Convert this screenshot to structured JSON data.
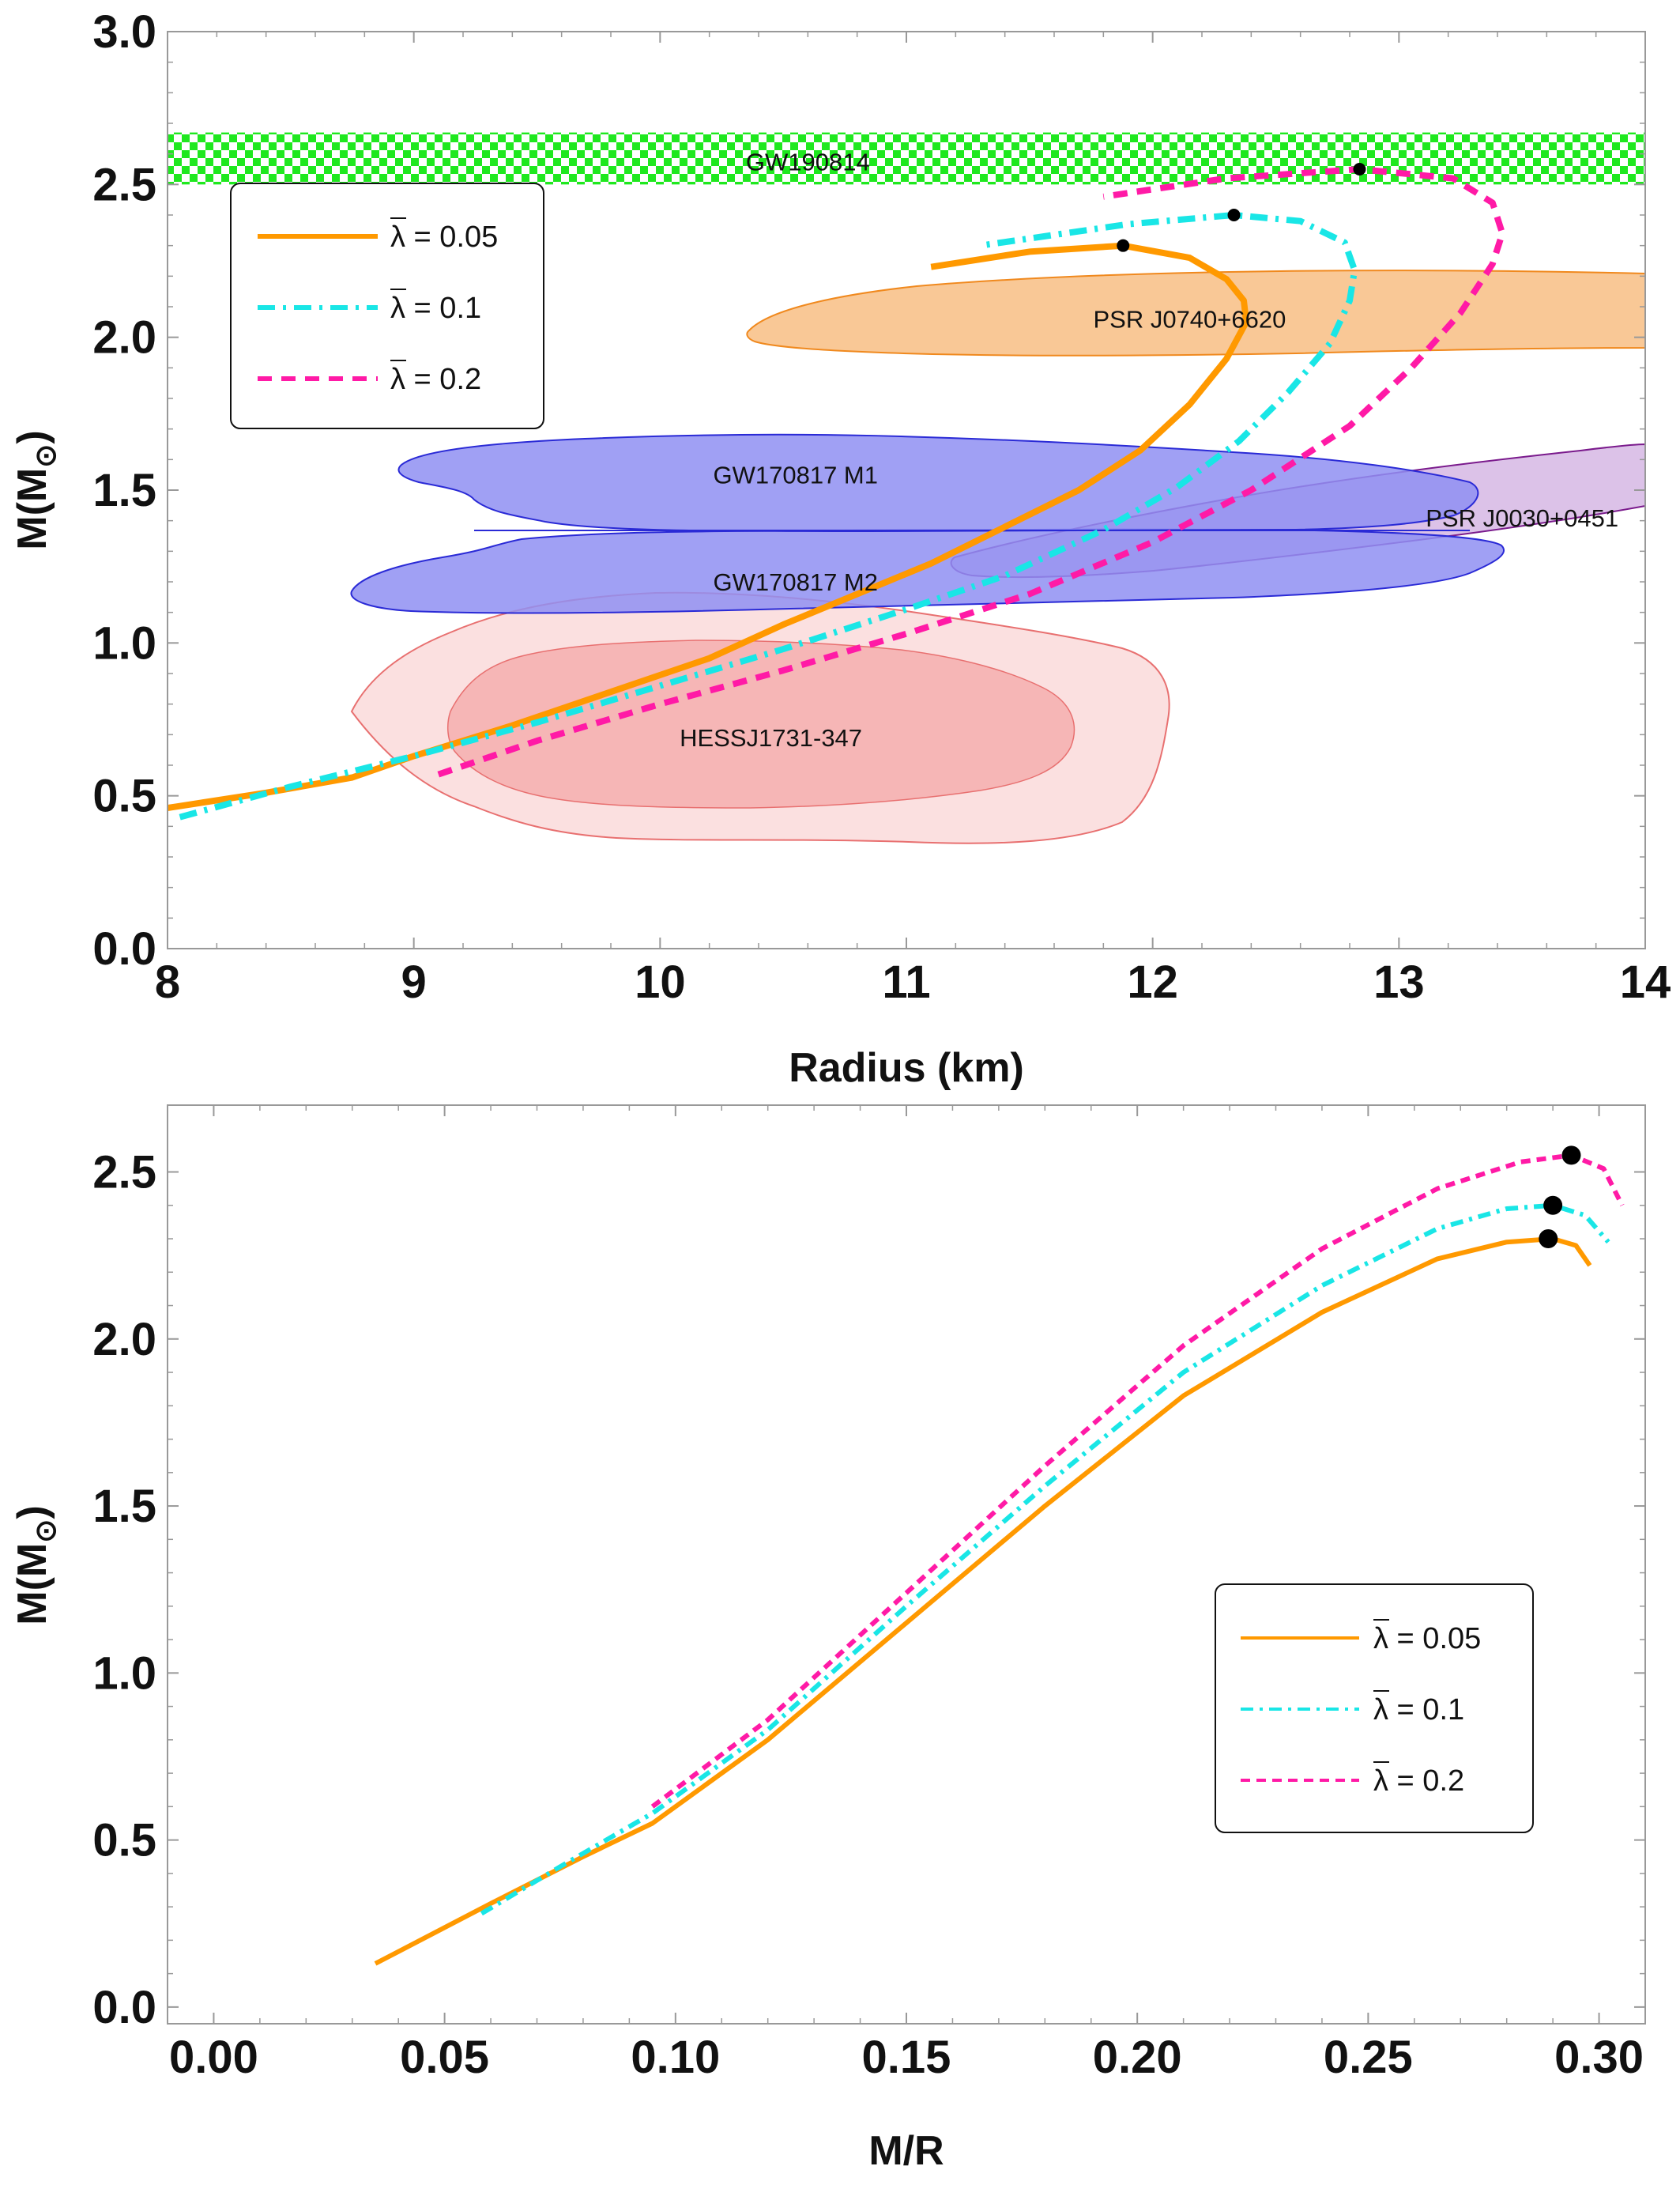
{
  "colors": {
    "orange": "#ff9900",
    "cyan": "#19e6e6",
    "magenta": "#ff1aa6",
    "gw190814_green": "#1fe81f",
    "psr_j0740_fill": "#f9c896",
    "psr_j0740_stroke": "#f0891e",
    "gw170817_fill": "#8f8ff2",
    "gw170817_stroke": "#2a2ad6",
    "psr_j0030_fill": "#dcc2e8",
    "psr_j0030_stroke": "#7a1a8c",
    "hess_outer_fill": "#fbe0e0",
    "hess_inner_fill": "#f6b6b6",
    "hess_stroke": "#e87070",
    "frame": "#999999"
  },
  "chart_data": [
    {
      "type": "line",
      "xlabel": "Radius (km)",
      "ylabel": "M(M",
      "ylabel_sub": "⊙",
      "ylabel_close": ")",
      "xlim": [
        8,
        14
      ],
      "ylim": [
        0,
        3.0
      ],
      "xticks": [
        "8",
        "9",
        "10",
        "11",
        "12",
        "13",
        "14"
      ],
      "yticks": [
        "0.0",
        "0.5",
        "1.0",
        "1.5",
        "2.0",
        "2.5",
        "3.0"
      ],
      "grid": false,
      "legend_position": "upper-left",
      "legend": [
        {
          "lambda_label": "λ",
          "text": " = 0.05"
        },
        {
          "lambda_label": "λ",
          "text": " = 0.1"
        },
        {
          "lambda_label": "λ",
          "text": " = 0.2"
        }
      ],
      "regions": [
        {
          "label": "GW190814",
          "y_range": [
            2.5,
            2.67
          ]
        },
        {
          "label": "PSR J0740+6620",
          "x_range": [
            10.4,
            14.0
          ],
          "y_range": [
            1.98,
            2.22
          ]
        },
        {
          "label": "GW170817 M1",
          "x_range": [
            8.95,
            13.15
          ],
          "y_range": [
            1.36,
            1.69
          ]
        },
        {
          "label": "GW170817 M2",
          "x_range": [
            8.75,
            13.3
          ],
          "y_range": [
            1.11,
            1.37
          ]
        },
        {
          "label": "PSR J0030+0451",
          "x_range": [
            11.2,
            14.0
          ],
          "y_range": [
            1.23,
            1.65
          ]
        },
        {
          "label": "HESSJ1731-347",
          "x_range": [
            8.75,
            12.05
          ],
          "y_range": [
            0.37,
            1.17
          ]
        }
      ],
      "series": [
        {
          "lambda": 0.05,
          "x": [
            8.0,
            8.4,
            8.75,
            9.0,
            9.4,
            9.8,
            10.2,
            10.5,
            10.8,
            11.1,
            11.4,
            11.7,
            11.95,
            12.15,
            12.3,
            12.38,
            12.37,
            12.3,
            12.15,
            11.88,
            11.5,
            11.1
          ],
          "y": [
            0.46,
            0.51,
            0.56,
            0.63,
            0.73,
            0.84,
            0.95,
            1.06,
            1.16,
            1.26,
            1.38,
            1.5,
            1.63,
            1.78,
            1.93,
            2.05,
            2.12,
            2.19,
            2.26,
            2.3,
            2.28,
            2.23
          ],
          "max_point": [
            11.88,
            2.3
          ]
        },
        {
          "lambda": 0.1,
          "x": [
            8.05,
            8.5,
            9.0,
            9.5,
            10.0,
            10.5,
            11.0,
            11.4,
            11.8,
            12.1,
            12.35,
            12.55,
            12.72,
            12.8,
            12.82,
            12.78,
            12.6,
            12.33,
            11.9,
            11.3
          ],
          "y": [
            0.43,
            0.53,
            0.63,
            0.74,
            0.86,
            0.98,
            1.11,
            1.22,
            1.37,
            1.51,
            1.66,
            1.82,
            1.98,
            2.12,
            2.22,
            2.31,
            2.38,
            2.4,
            2.37,
            2.3
          ],
          "max_point": [
            12.33,
            2.4
          ]
        },
        {
          "lambda": 0.2,
          "x": [
            9.1,
            9.5,
            10.0,
            10.5,
            11.0,
            11.5,
            12.0,
            12.4,
            12.8,
            13.05,
            13.25,
            13.38,
            13.42,
            13.38,
            13.22,
            12.84,
            12.3,
            11.8
          ],
          "y": [
            0.57,
            0.68,
            0.8,
            0.91,
            1.03,
            1.16,
            1.33,
            1.5,
            1.71,
            1.9,
            2.08,
            2.24,
            2.34,
            2.44,
            2.52,
            2.55,
            2.52,
            2.46
          ],
          "max_point": [
            12.84,
            2.55
          ]
        }
      ]
    },
    {
      "type": "line",
      "xlabel": "M/R",
      "ylabel": "M(M",
      "ylabel_sub": "⊙",
      "ylabel_close": ")",
      "xlim": [
        -0.01,
        0.31
      ],
      "ylim": [
        -0.05,
        2.7
      ],
      "xticks": [
        "0.00",
        "0.05",
        "0.10",
        "0.15",
        "0.20",
        "0.25",
        "0.30"
      ],
      "yticks": [
        "0.0",
        "0.5",
        "1.0",
        "1.5",
        "2.0",
        "2.5"
      ],
      "grid": false,
      "legend_position": "center-right",
      "legend": [
        {
          "lambda_label": "λ",
          "text": " = 0.05"
        },
        {
          "lambda_label": "λ",
          "text": " = 0.1"
        },
        {
          "lambda_label": "λ",
          "text": " = 0.2"
        }
      ],
      "series": [
        {
          "lambda": 0.05,
          "x": [
            0.035,
            0.06,
            0.08,
            0.095,
            0.12,
            0.15,
            0.18,
            0.21,
            0.24,
            0.265,
            0.28,
            0.29,
            0.295,
            0.298
          ],
          "y": [
            0.13,
            0.31,
            0.45,
            0.55,
            0.8,
            1.15,
            1.5,
            1.83,
            2.08,
            2.24,
            2.29,
            2.3,
            2.28,
            2.22
          ],
          "max_point": [
            0.289,
            2.3
          ]
        },
        {
          "lambda": 0.1,
          "x": [
            0.058,
            0.075,
            0.095,
            0.12,
            0.15,
            0.18,
            0.21,
            0.24,
            0.265,
            0.28,
            0.29,
            0.297,
            0.302
          ],
          "y": [
            0.28,
            0.42,
            0.58,
            0.83,
            1.2,
            1.56,
            1.9,
            2.16,
            2.33,
            2.39,
            2.4,
            2.37,
            2.29
          ],
          "max_point": [
            0.29,
            2.4
          ]
        },
        {
          "lambda": 0.2,
          "x": [
            0.095,
            0.12,
            0.15,
            0.18,
            0.21,
            0.24,
            0.265,
            0.283,
            0.294,
            0.301,
            0.305
          ],
          "y": [
            0.6,
            0.86,
            1.24,
            1.62,
            1.98,
            2.27,
            2.45,
            2.53,
            2.55,
            2.51,
            2.4
          ],
          "max_point": [
            0.294,
            2.55
          ]
        }
      ]
    }
  ]
}
